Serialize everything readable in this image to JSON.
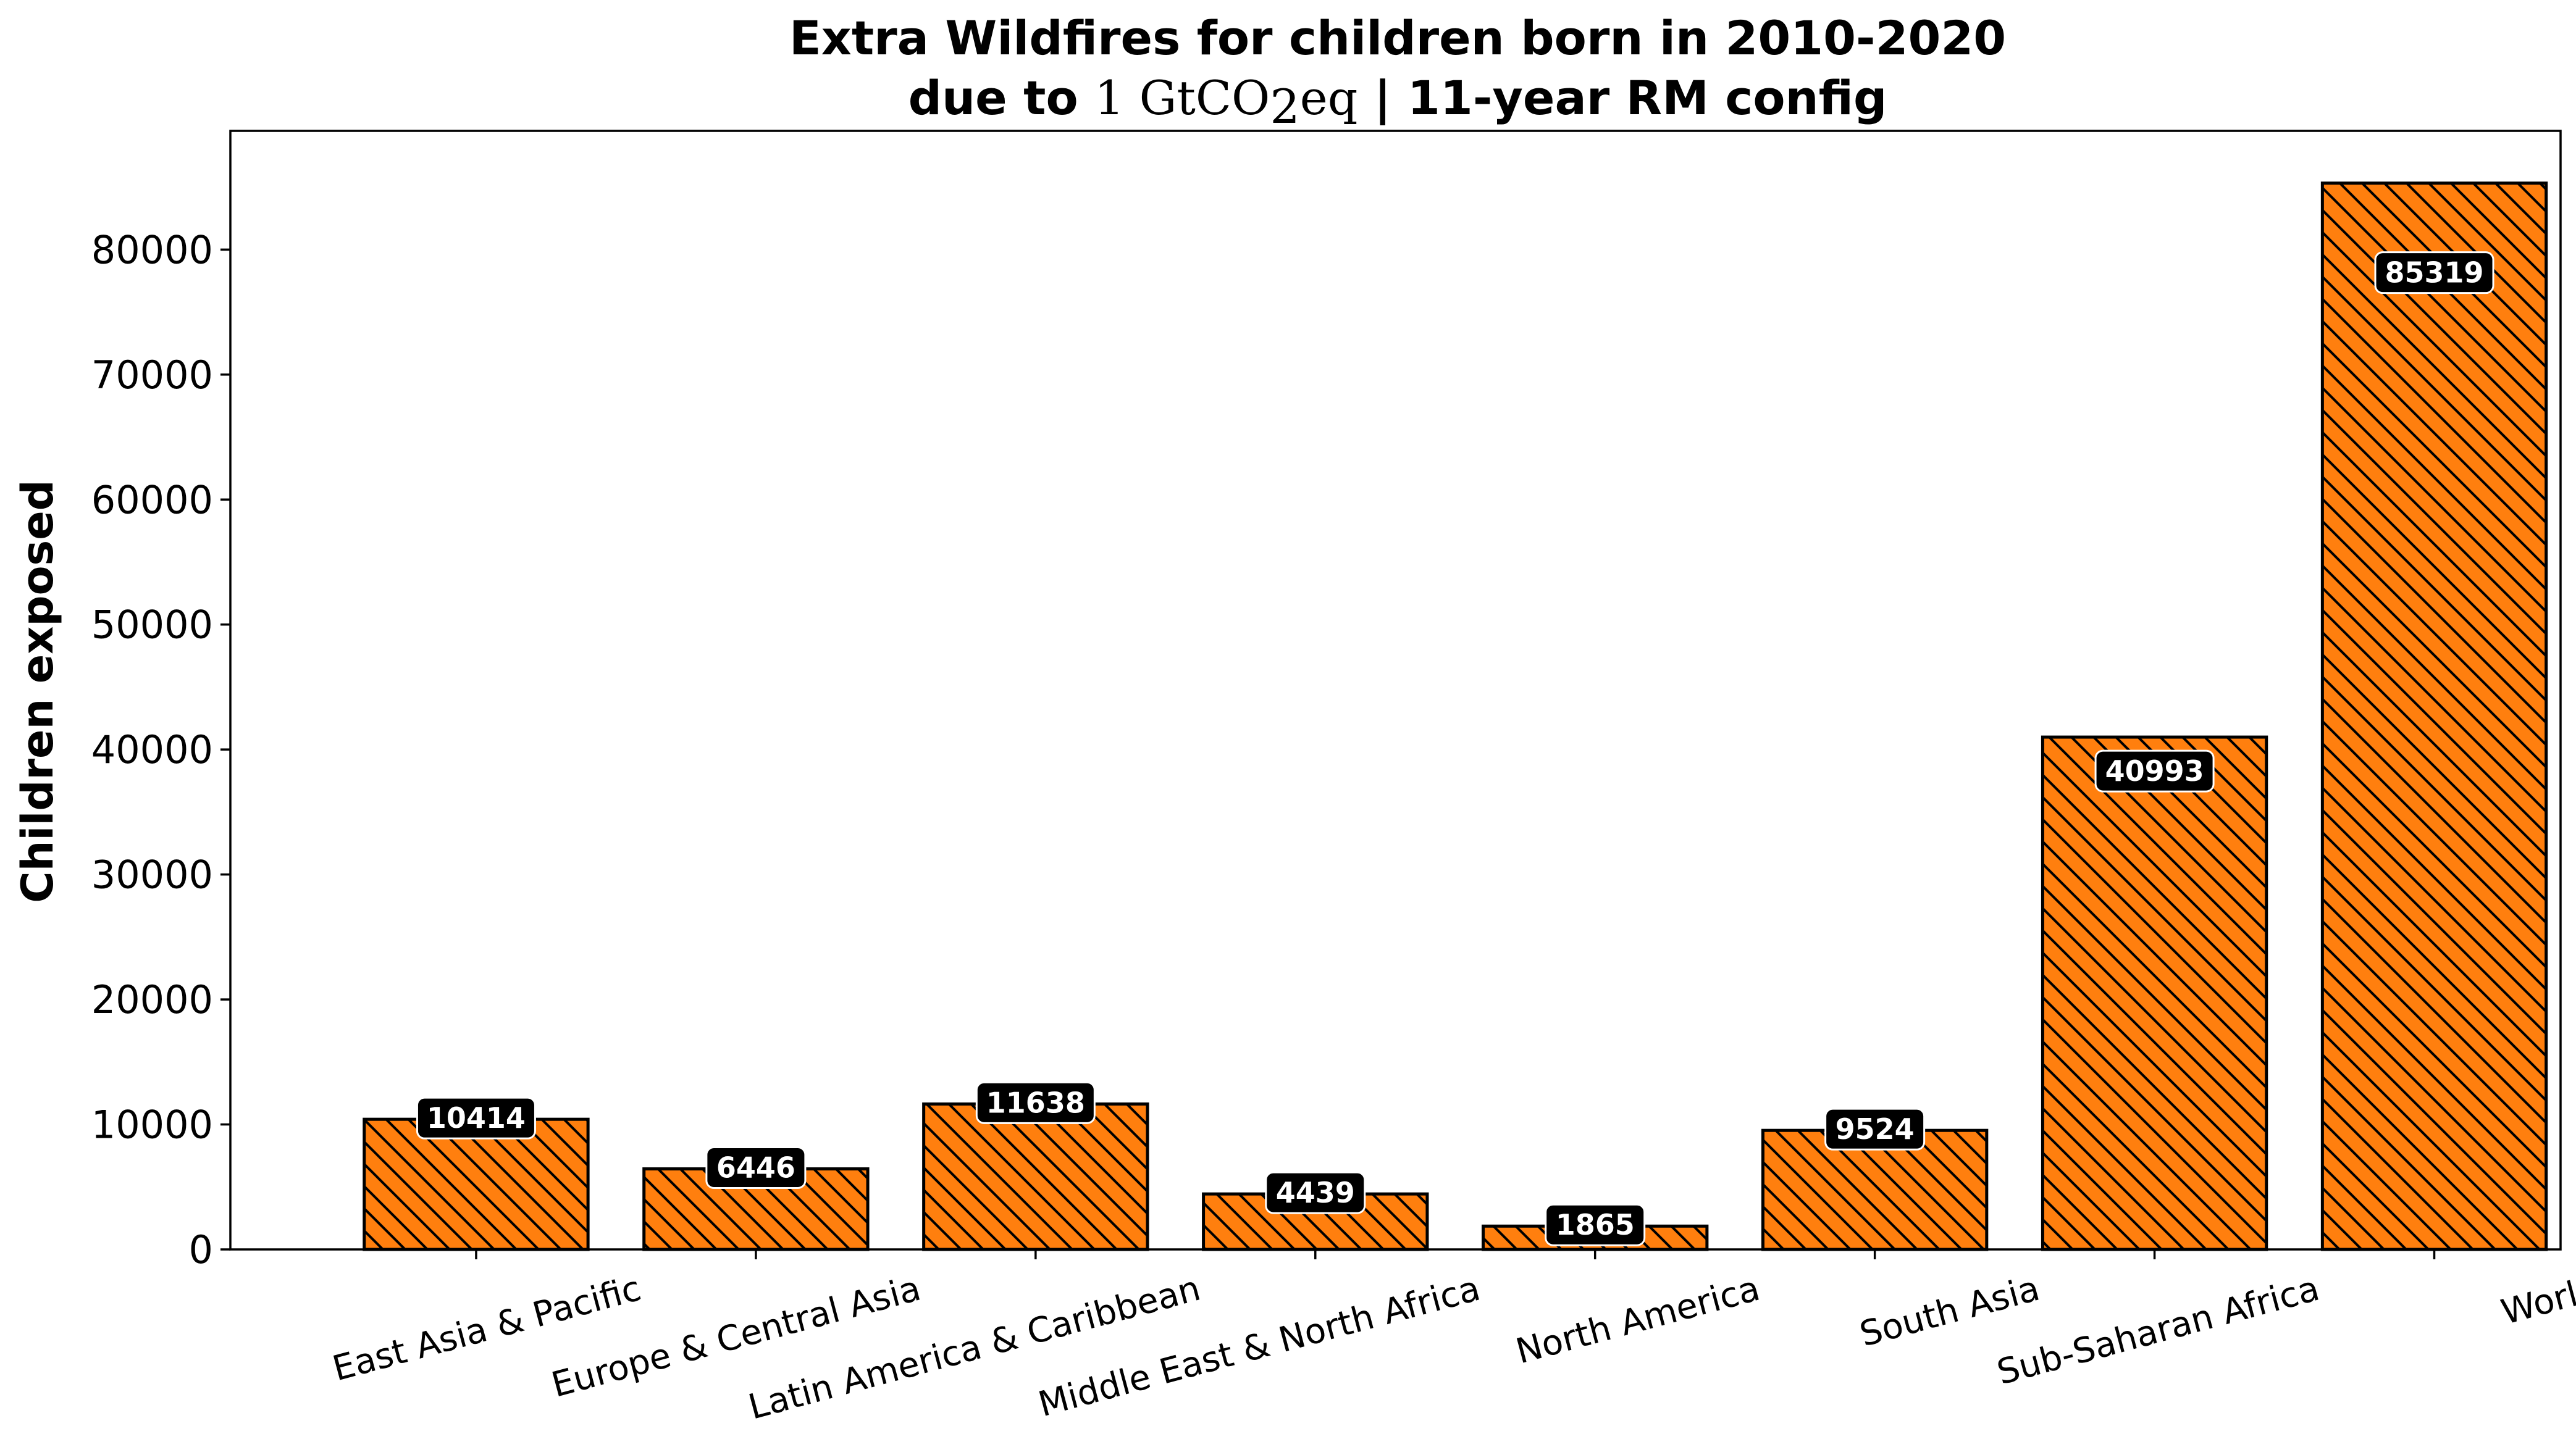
{
  "chart_data": {
    "type": "bar",
    "title_line1": "Extra Wildfires for children born in 2010-2020",
    "title_line2": {
      "prefix": "due to ",
      "amount": "1",
      "unit_main": "GtCO",
      "unit_sub": "2",
      "unit_end": "eq",
      "suffix": " | 11-year RM config"
    },
    "xlabel": "",
    "ylabel": "Children exposed",
    "ylim": [
      0,
      89500
    ],
    "yticks": [
      0,
      10000,
      20000,
      30000,
      40000,
      50000,
      60000,
      70000,
      80000
    ],
    "categories": [
      "East Asia & Pacific",
      "Europe & Central Asia",
      "Latin America & Caribbean",
      "Middle East & North Africa",
      "North America",
      "South Asia",
      "Sub-Saharan Africa",
      "World"
    ],
    "values": [
      10414,
      6446,
      11638,
      4439,
      1865,
      9524,
      40993,
      85319
    ],
    "bar_color": "#ff7f0e",
    "hatch": "diagonal",
    "label_box_color": "#000000",
    "label_text_color": "#ffffff",
    "grid": false,
    "legend": "none"
  }
}
